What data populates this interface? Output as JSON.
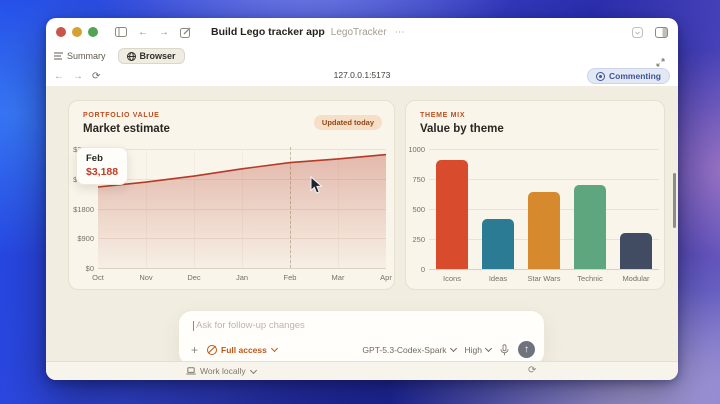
{
  "window": {
    "title": "Build Lego tracker app",
    "subtitle": "LegoTracker",
    "more": "⋯"
  },
  "tabs": {
    "summary": {
      "label": "Summary"
    },
    "browser": {
      "label": "Browser"
    }
  },
  "urlbar": {
    "url": "127.0.0.1:5173",
    "commenting_label": "Commenting"
  },
  "portfolio_card": {
    "eyebrow": "PORTFOLIO VALUE",
    "title": "Market estimate",
    "badge": "Updated today",
    "tooltip": {
      "month": "Feb",
      "value": "$3,188"
    }
  },
  "theme_card": {
    "eyebrow": "THEME MIX",
    "title": "Value by theme"
  },
  "composer": {
    "placeholder": "Ask for follow-up changes",
    "full_access": "Full access",
    "model": "GPT-5.3-Codex-Spark",
    "effort": "High",
    "send_glyph": "↑",
    "plus_glyph": "+"
  },
  "footer": {
    "work_locally": "Work locally",
    "refresh_glyph": "⟳"
  },
  "nav": {
    "back_glyph": "←",
    "forward_glyph": "→",
    "reload_glyph": "⟳"
  },
  "colors": {
    "accent_orange": "#bf4d20",
    "badge_bg": "#f7dec6",
    "content_bg": "#f1ede1",
    "card_bg": "#f9f5eb",
    "commenting_blue": "#3c539b"
  },
  "chart_data": [
    {
      "type": "area",
      "title": "Market estimate",
      "x": [
        "Oct",
        "Nov",
        "Dec",
        "Jan",
        "Feb",
        "Mar",
        "Apr"
      ],
      "values": [
        2450,
        2600,
        2780,
        3000,
        3188,
        3300,
        3430
      ],
      "ylim": [
        0,
        3600
      ],
      "yticks": [
        0,
        900,
        1800,
        2700,
        3600
      ],
      "ytick_labels": [
        "$0",
        "$900",
        "$1800",
        "$2700",
        "$3600"
      ],
      "xlabel": "",
      "ylabel": "",
      "grid": true,
      "legend": "none",
      "line_color": "#b53a28",
      "fill_top": "rgba(181,58,40,0.32)",
      "fill_bottom": "rgba(181,58,40,0.03)",
      "hover_month": "Feb",
      "hover_value": 3188
    },
    {
      "type": "bar",
      "title": "Value by theme",
      "categories": [
        "Icons",
        "Ideas",
        "Star Wars",
        "Technic",
        "Modular"
      ],
      "values": [
        910,
        420,
        640,
        700,
        300
      ],
      "colors": [
        "#d84b2c",
        "#2b7b94",
        "#d68a2d",
        "#5ea67d",
        "#414b61"
      ],
      "ylim": [
        0,
        1000
      ],
      "yticks": [
        0,
        250,
        500,
        750,
        1000
      ],
      "xlabel": "",
      "ylabel": "",
      "grid": true,
      "legend": "none"
    }
  ]
}
